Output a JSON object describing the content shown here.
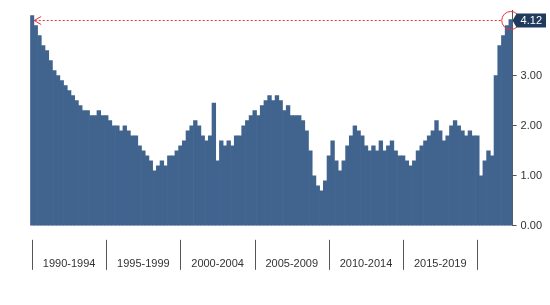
{
  "chart_data": {
    "type": "bar",
    "color": "#41648f",
    "categories": [
      null,
      null,
      null,
      null,
      null,
      null,
      null,
      null,
      null,
      null,
      "1990-1994",
      null,
      null,
      null,
      null,
      null,
      null,
      null,
      null,
      null,
      null,
      null,
      null,
      null,
      null,
      null,
      null,
      null,
      null,
      null,
      "1995-1999",
      null,
      null,
      null,
      null,
      null,
      null,
      null,
      null,
      null,
      null,
      null,
      null,
      null,
      null,
      null,
      null,
      null,
      null,
      null,
      "2000-2004",
      null,
      null,
      null,
      null,
      null,
      null,
      null,
      null,
      null,
      null,
      null,
      null,
      null,
      null,
      null,
      null,
      null,
      null,
      null,
      "2005-2009",
      null,
      null,
      null,
      null,
      null,
      null,
      null,
      null,
      null,
      null,
      null,
      null,
      null,
      null,
      null,
      null,
      null,
      null,
      null,
      "2010-2014",
      null,
      null,
      null,
      null,
      null,
      null,
      null,
      null,
      null,
      null,
      null,
      null,
      null,
      null,
      null,
      null,
      null,
      null,
      null,
      "2015-2019",
      null,
      null,
      null,
      null,
      null,
      null,
      null,
      null,
      null,
      null,
      null,
      null,
      null,
      null,
      null,
      null,
      null,
      null,
      null
    ],
    "values": [
      4.2,
      4.0,
      3.8,
      3.6,
      3.5,
      3.3,
      3.1,
      3.0,
      2.9,
      2.8,
      2.7,
      2.6,
      2.5,
      2.4,
      2.3,
      2.3,
      2.2,
      2.2,
      2.3,
      2.2,
      2.2,
      2.1,
      2.0,
      2.0,
      1.9,
      2.0,
      1.9,
      1.8,
      1.8,
      1.6,
      1.5,
      1.4,
      1.3,
      1.1,
      1.2,
      1.3,
      1.2,
      1.4,
      1.4,
      1.5,
      1.6,
      1.7,
      1.9,
      2.0,
      2.1,
      2.0,
      1.8,
      1.7,
      1.8,
      2.45,
      1.3,
      1.7,
      1.6,
      1.7,
      1.6,
      1.8,
      1.8,
      2.0,
      2.1,
      2.2,
      2.3,
      2.2,
      2.4,
      2.5,
      2.6,
      2.5,
      2.6,
      2.5,
      2.3,
      2.4,
      2.2,
      2.2,
      2.2,
      2.1,
      1.9,
      1.5,
      1.0,
      0.8,
      0.7,
      0.9,
      1.4,
      1.7,
      1.3,
      1.1,
      1.3,
      1.6,
      1.8,
      2.0,
      1.9,
      1.8,
      1.6,
      1.5,
      1.6,
      1.5,
      1.7,
      1.5,
      1.6,
      1.7,
      1.5,
      1.4,
      1.4,
      1.3,
      1.2,
      1.3,
      1.5,
      1.6,
      1.7,
      1.8,
      1.9,
      2.1,
      1.9,
      1.7,
      1.8,
      2.0,
      2.1,
      2.0,
      1.9,
      1.8,
      1.9,
      1.8,
      1.8,
      1.0,
      1.3,
      1.5,
      1.4,
      3.0,
      3.6,
      3.8,
      4.0,
      4.12
    ],
    "ylim": [
      0,
      4.3
    ],
    "yticks": [
      {
        "value": 0,
        "label": "0.00"
      },
      {
        "value": 1,
        "label": "1.00"
      },
      {
        "value": 2,
        "label": "2.00"
      },
      {
        "value": 3,
        "label": "3.00"
      }
    ],
    "annotations": [
      {
        "value": 4.12,
        "label": "4.12"
      }
    ],
    "grid": false
  }
}
